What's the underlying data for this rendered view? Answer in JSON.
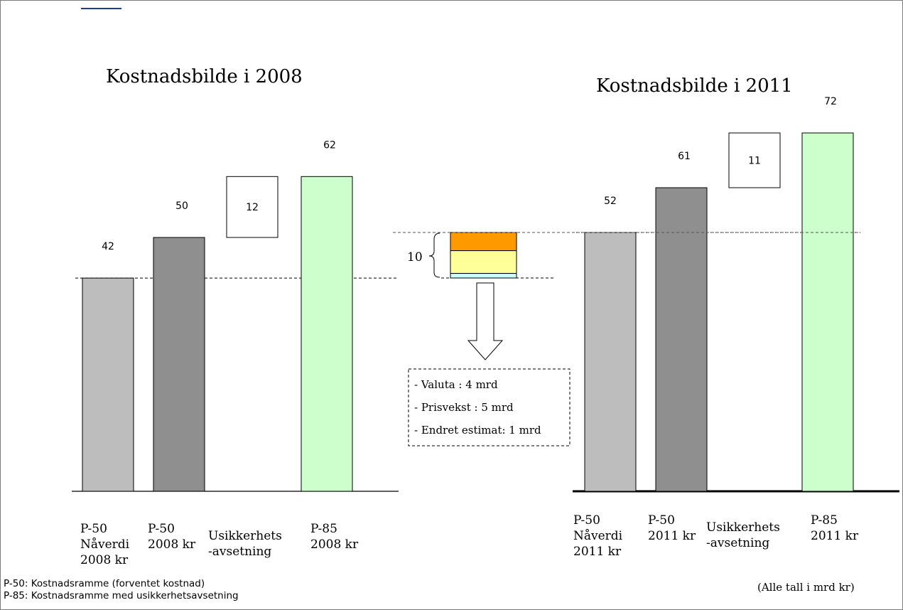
{
  "chart_data": [
    {
      "type": "bar",
      "title": "Kostnadsbilde i 2008",
      "categories": [
        "P-50\nNåverdi\n2008 kr",
        "P-50\n2008 kr",
        "Usikkerhets\n-avsetning",
        "P-85\n2008 kr"
      ],
      "values": [
        42,
        50,
        12,
        62
      ],
      "bar_colors": [
        "#bdbdbd",
        "#8f8f8f",
        "#ffffff",
        "#ccffcc"
      ],
      "reference_line_value": 42
    },
    {
      "type": "bar",
      "title": "Kostnadsbilde i 2011",
      "categories": [
        "P-50\nNåverdi\n2011 kr",
        "P-50\n2011 kr",
        "Usikkerhets\n-avsetning",
        "P-85\n2011 kr"
      ],
      "values": [
        52,
        61,
        11,
        72
      ],
      "bar_colors": [
        "#bdbdbd",
        "#8f8f8f",
        "#ffffff",
        "#ccffcc"
      ],
      "reference_line_value": 52
    }
  ],
  "bridge": {
    "total_label": "10",
    "segments": [
      {
        "label": "Valuta",
        "value": 4,
        "color": "#ff9900"
      },
      {
        "label": "Prisvekst",
        "value": 5,
        "color": "#ffff99"
      },
      {
        "label": "Endret estimat",
        "value": 1,
        "color": "#ccffff"
      }
    ],
    "breakdown_lines": [
      "- Valuta : 4 mrd",
      "- Prisvekst : 5 mrd",
      "- Endret estimat: 1 mrd"
    ]
  },
  "footer": {
    "line1": "P-50: Kostnadsramme (forventet kostnad)",
    "line2": "P-85: Kostnadsramme med usikkerhetsavsetning"
  },
  "unit_note": "(Alle tall i mrd kr)"
}
